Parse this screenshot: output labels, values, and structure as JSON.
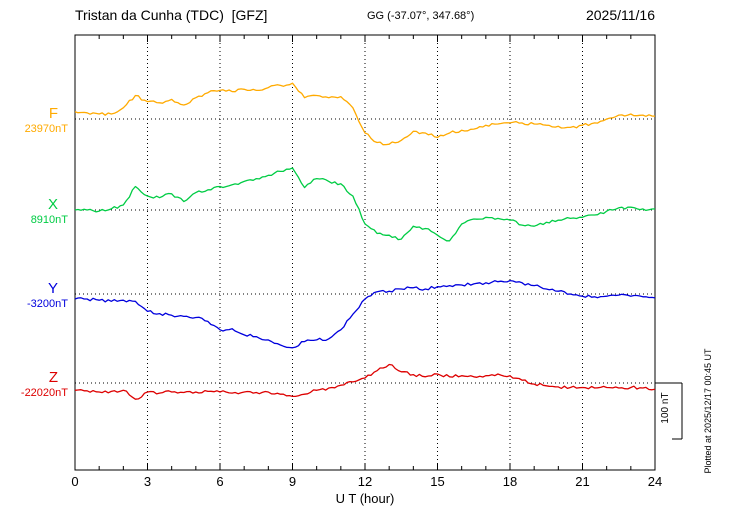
{
  "header": {
    "station_title": "Tristan da Cunha (TDC)  [GFZ]",
    "coords": "GG (-37.07°, 347.68°)",
    "date": "2025/11/16"
  },
  "axis": {
    "x_label": "U T (hour)",
    "x_ticks": [
      "0",
      "3",
      "6",
      "9",
      "12",
      "15",
      "18",
      "21",
      "24"
    ]
  },
  "scale_bar": {
    "label": "100 nT"
  },
  "footer_note": "Plotted at 2025/12/17 00:45 UT",
  "traces": [
    {
      "letter": "F",
      "value_label": "23970nT",
      "color": "#ffaa00"
    },
    {
      "letter": "X",
      "value_label": "8910nT",
      "color": "#00cc44"
    },
    {
      "letter": "Y",
      "value_label": "-3200nT",
      "color": "#0000dd"
    },
    {
      "letter": "Z",
      "value_label": "-22020nT",
      "color": "#dd0000"
    }
  ],
  "chart_data": {
    "type": "line",
    "xlabel": "U T (hour)",
    "x_range": [
      0,
      24
    ],
    "x_tick_step": 3,
    "x_start": 0,
    "x_step": 0.5,
    "unit": "nT",
    "scale_bar_nT": 100,
    "grid": "dotted vertical every 3 h, dotted horizontal baseline per component",
    "series": [
      {
        "name": "F",
        "baseline_nT": 23970,
        "color": "#ffaa00",
        "offsets_nT": [
          13,
          11,
          9,
          9,
          20,
          42,
          31,
          29,
          35,
          25,
          38,
          47,
          51,
          49,
          53,
          51,
          56,
          60,
          64,
          38,
          42,
          38,
          40,
          20,
          -25,
          -42,
          -45,
          -38,
          -22,
          -25,
          -33,
          -25,
          -20,
          -18,
          -11,
          -9,
          -7,
          -7,
          -9,
          -11,
          -13,
          -15,
          -11,
          -7,
          0,
          7,
          9,
          7,
          5
        ]
      },
      {
        "name": "X",
        "baseline_nT": 8910,
        "color": "#00cc44",
        "offsets_nT": [
          0,
          0,
          -2,
          2,
          9,
          42,
          25,
          22,
          29,
          15,
          31,
          36,
          42,
          45,
          51,
          56,
          62,
          69,
          75,
          40,
          56,
          51,
          47,
          25,
          -25,
          -42,
          -45,
          -52,
          -29,
          -33,
          -45,
          -55,
          -25,
          -16,
          -13,
          -15,
          -18,
          -27,
          -29,
          -22,
          -18,
          -15,
          -13,
          -9,
          -2,
          4,
          5,
          2,
          2
        ]
      },
      {
        "name": "Y",
        "baseline_nT": -3200,
        "color": "#0000dd",
        "offsets_nT": [
          -9,
          -9,
          -11,
          -13,
          -11,
          -13,
          -31,
          -35,
          -38,
          -40,
          -42,
          -49,
          -64,
          -62,
          -73,
          -76,
          -82,
          -91,
          -96,
          -85,
          -82,
          -80,
          -64,
          -36,
          -9,
          4,
          5,
          9,
          11,
          9,
          13,
          15,
          16,
          18,
          20,
          22,
          24,
          20,
          15,
          9,
          5,
          0,
          -4,
          -5,
          -4,
          -2,
          -4,
          -5,
          -7
        ]
      },
      {
        "name": "Z",
        "baseline_nT": -22020,
        "color": "#dd0000",
        "offsets_nT": [
          -13,
          -14,
          -16,
          -15,
          -13,
          -29,
          -16,
          -18,
          -16,
          -17,
          -16,
          -15,
          -16,
          -18,
          -16,
          -17,
          -16,
          -20,
          -24,
          -20,
          -13,
          -9,
          -4,
          2,
          9,
          22,
          33,
          20,
          15,
          11,
          16,
          11,
          13,
          11,
          13,
          16,
          13,
          5,
          -2,
          -5,
          -7,
          -8,
          -8,
          -9,
          -8,
          -9,
          -8,
          -9,
          -11
        ]
      }
    ]
  }
}
